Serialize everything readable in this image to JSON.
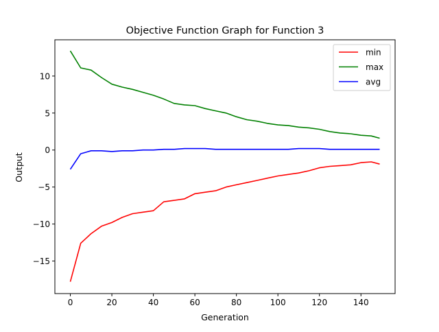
{
  "chart_data": {
    "type": "line",
    "title": "Objective Function Graph for Function 3",
    "xlabel": "Generation",
    "ylabel": "Output",
    "xlim": [
      -7.45,
      156.45
    ],
    "ylim": [
      -19.4,
      14.9
    ],
    "xticks": [
      0,
      20,
      40,
      60,
      80,
      100,
      120,
      140
    ],
    "yticks": [
      -15,
      -10,
      -5,
      0,
      5,
      10
    ],
    "ytick_labels": [
      "−15",
      "−10",
      "−5",
      "0",
      "5",
      "10"
    ],
    "legend_position": "top-right",
    "grid": false,
    "x": [
      0,
      5,
      10,
      15,
      20,
      25,
      30,
      35,
      40,
      45,
      50,
      55,
      60,
      65,
      70,
      75,
      80,
      85,
      90,
      95,
      100,
      105,
      110,
      115,
      120,
      125,
      130,
      135,
      140,
      145,
      149
    ],
    "series": [
      {
        "name": "min",
        "color": "#ff0000",
        "values": [
          -17.8,
          -12.6,
          -11.3,
          -10.3,
          -9.8,
          -9.1,
          -8.6,
          -8.4,
          -8.2,
          -7.0,
          -6.8,
          -6.6,
          -5.9,
          -5.7,
          -5.5,
          -5.0,
          -4.7,
          -4.4,
          -4.1,
          -3.8,
          -3.5,
          -3.3,
          -3.1,
          -2.8,
          -2.4,
          -2.2,
          -2.1,
          -2.0,
          -1.7,
          -1.6,
          -1.9
        ]
      },
      {
        "name": "max",
        "color": "#008000",
        "values": [
          13.4,
          11.1,
          10.8,
          9.8,
          8.9,
          8.5,
          8.2,
          7.8,
          7.4,
          6.9,
          6.3,
          6.1,
          6.0,
          5.6,
          5.3,
          5.0,
          4.5,
          4.1,
          3.9,
          3.6,
          3.4,
          3.3,
          3.1,
          3.0,
          2.8,
          2.5,
          2.3,
          2.2,
          2.0,
          1.9,
          1.6
        ]
      },
      {
        "name": "avg",
        "color": "#0000ff",
        "values": [
          -2.6,
          -0.5,
          -0.1,
          -0.1,
          -0.2,
          -0.1,
          -0.1,
          0.0,
          0.0,
          0.1,
          0.1,
          0.2,
          0.2,
          0.2,
          0.1,
          0.1,
          0.1,
          0.1,
          0.1,
          0.1,
          0.1,
          0.1,
          0.2,
          0.2,
          0.2,
          0.1,
          0.1,
          0.1,
          0.1,
          0.1,
          0.1
        ]
      }
    ]
  }
}
